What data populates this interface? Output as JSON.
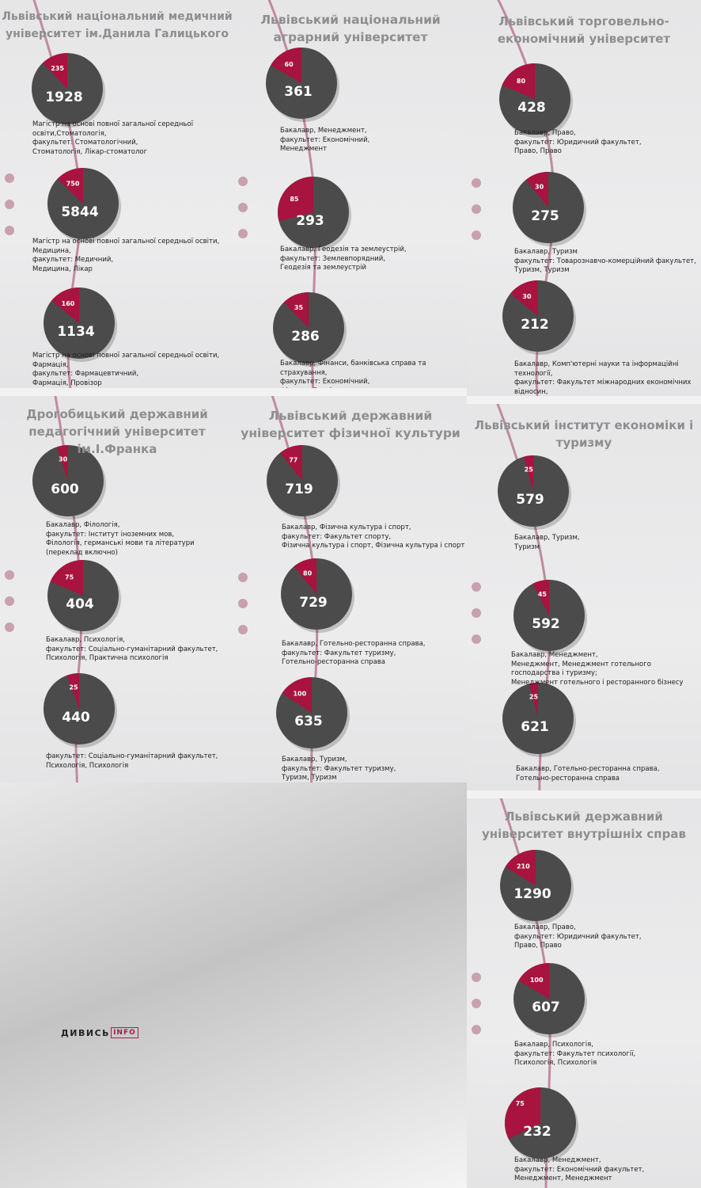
{
  "colors": {
    "pie_total": "#4b4b4b",
    "pie_slice": "#a8133f",
    "curve": "#c08aa0",
    "dot": "#c9a0ae",
    "title": "#8e8e8e"
  },
  "logo": {
    "part1": "ДИВИСЬ",
    "part2": "INFO"
  },
  "chart_data": [
    {
      "type": "pie",
      "title": "Львівський національний медичний університет ім.Данила Галицького",
      "programs": [
        {
          "total": 1928,
          "slice": 235,
          "description": "Магістр на основі повної загальної середньої освіти,Стоматологія,\nфакультет: Стоматологічний,\nСтоматологія, Лікар-стоматолог"
        },
        {
          "total": 5844,
          "slice": 750,
          "description": "Магістр на основі повної загальної середньої освіти, Медицина,\nфакультет: Медичний,\nМедицина, Лікар"
        },
        {
          "total": 1134,
          "slice": 160,
          "description": "Магістр на основі повної загальної середньої освіти, Фармація,\nфакультет: Фармацевтичний,\nФармація, Провізор"
        }
      ]
    },
    {
      "type": "pie",
      "title": "Львівський національний аграрний університет",
      "programs": [
        {
          "total": 361,
          "slice": 60,
          "description": "Бакалавр, Менеджмент,\nфакультет: Економічний,\nМенеджмент"
        },
        {
          "total": 293,
          "slice": 85,
          "description": "Бакалавр, Геодезія та землеустрій,\nфакультет: Землевпорядний,\nГеодезія та землеустрій"
        },
        {
          "total": 286,
          "slice": 35,
          "description": "Бакалавр, Фінанси, банківська справа та страхування,\nфакультет: Економічний,\nФінанси, банківська справа та страхування"
        }
      ]
    },
    {
      "type": "pie",
      "title": "Львівський торговельно-економічний університет",
      "programs": [
        {
          "total": 428,
          "slice": 80,
          "description": "Бакалавр, Право,\nфакультет: Юридичний факультет,\nПраво, Право"
        },
        {
          "total": 275,
          "slice": 30,
          "description": "Бакалавр, Туризм\nфакультет: Товарознавчо-комерційний факультет,\nТуризм, Туризм"
        },
        {
          "total": 212,
          "slice": 30,
          "description": "Бакалавр, Комп'ютерні науки та інформаційні технології,\nфакультет: Факультет міжнародних економічних відносин,\nКомп'ютерні науки та інформаційні технології, Комп'ютерні\nнауки та інформаційні технології"
        }
      ]
    },
    {
      "type": "pie",
      "title": "Дрогобицький державний педагогічний університет ім.І.Франка",
      "programs": [
        {
          "total": 600,
          "slice": 30,
          "description": "Бакалавр, Філологія,\nфакультет: Інститут іноземних мов,\nФілологія, германські мови та літератури (переклад включно)"
        },
        {
          "total": 404,
          "slice": 75,
          "description": "Бакалавр, Психологія,\nфакультет: Соціально-гуманітарний факультет,\nПсихологія, Практична психологія"
        },
        {
          "total": 440,
          "slice": 25,
          "description": "факультет: Соціально-гуманітарний факультет,\nПсихологія, Психологія"
        }
      ]
    },
    {
      "type": "pie",
      "title": "Львівський державний університет фізичної культури",
      "programs": [
        {
          "total": 719,
          "slice": 77,
          "description": "Бакалавр, Фізична культура і спорт,\nфакультет: Факультет спорту,\nФізична культура і спорт, Фізична культура і спорт"
        },
        {
          "total": 729,
          "slice": 80,
          "description": "Бакалавр, Готельно-ресторанна справа,\nфакультет: Факультет туризму,\nГотельно-ресторанна справа"
        },
        {
          "total": 635,
          "slice": 100,
          "description": "Бакалавр, Туризм,\nфакультет: Факультет туризму,\nТуризм, Туризм"
        }
      ]
    },
    {
      "type": "pie",
      "title": "Львівський інститут економіки і туризму",
      "programs": [
        {
          "total": 579,
          "slice": 25,
          "description": "Бакалавр, Туризм,\nТуризм"
        },
        {
          "total": 592,
          "slice": 45,
          "description": "Бакалавр, Менеджмент,\nМенеджмент, Менеджмент готельного господарства і туризму;\nМенеджмент готельного і ресторанного бізнесу"
        },
        {
          "total": 621,
          "slice": 25,
          "description": "Бакалавр, Готельно-ресторанна справа,\nГотельно-ресторанна справа"
        }
      ]
    },
    {
      "type": "pie",
      "title": "Львівський державний університет внутрішніх справ",
      "programs": [
        {
          "total": 1290,
          "slice": 210,
          "description": "Бакалавр, Право,\nфакультет: Юридичний факультет,\nПраво, Право"
        },
        {
          "total": 607,
          "slice": 100,
          "description": "Бакалавр, Психологія,\nфакультет: Факультет психології,\nПсихологія, Психологія"
        },
        {
          "total": 232,
          "slice": 75,
          "description": "Бакалавр, Менеджмент,\nфакультет: Економічний факультет,\nМенеджмент, Менеджмент"
        }
      ]
    }
  ]
}
